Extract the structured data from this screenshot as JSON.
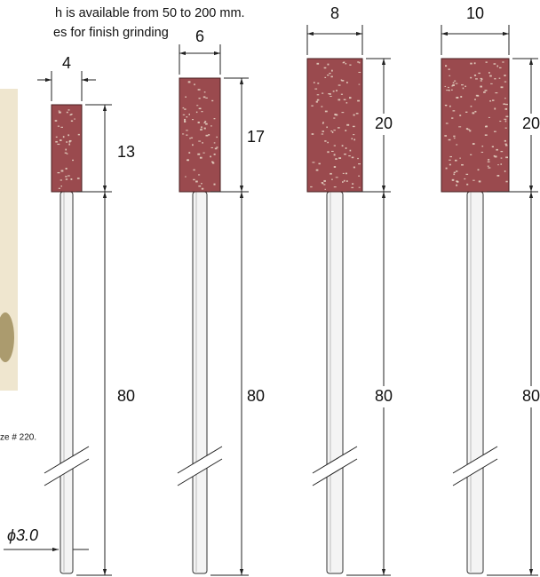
{
  "intro": {
    "line1": "h is available from 50 to 200 mm.",
    "line2": "es for finish grinding"
  },
  "photo_caption": "ze # 220.",
  "shaft_diameter": "ϕ3.0",
  "tools": [
    {
      "width": "4",
      "head_length": "13",
      "shaft_length": "80"
    },
    {
      "width": "6",
      "head_length": "17",
      "shaft_length": "80"
    },
    {
      "width": "8",
      "head_length": "20",
      "shaft_length": "80"
    },
    {
      "width": "10",
      "head_length": "20",
      "shaft_length": "80"
    }
  ]
}
